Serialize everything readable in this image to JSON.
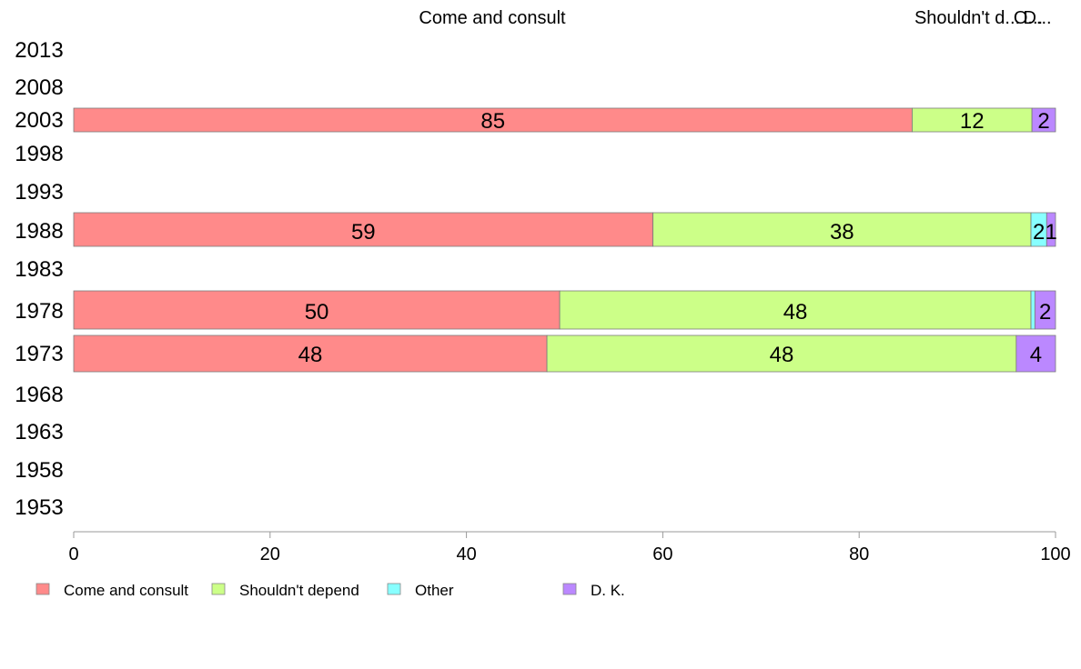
{
  "chart_data": {
    "type": "bar",
    "orientation": "horizontal",
    "stacked": true,
    "top_labels": [
      "Come and consult",
      "Shouldn't d...",
      "O...",
      "D..."
    ],
    "categories": [
      "2013",
      "2008",
      "2003",
      "1998",
      "1993",
      "1988",
      "1983",
      "1978",
      "1973",
      "1968",
      "1963",
      "1958",
      "1953"
    ],
    "series": [
      {
        "name": "Come and consult",
        "color": "#FF8A8A",
        "values": [
          null,
          null,
          85.4,
          null,
          null,
          59,
          null,
          49.5,
          48.2,
          null,
          null,
          null,
          null
        ]
      },
      {
        "name": "Shouldn't depend",
        "color": "#CCFF88",
        "values": [
          null,
          null,
          12.2,
          null,
          null,
          38.5,
          null,
          48,
          47.8,
          null,
          null,
          null,
          null
        ]
      },
      {
        "name": "Other",
        "color": "#88FFFF",
        "values": [
          null,
          null,
          0,
          null,
          null,
          1.6,
          null,
          0.4,
          0,
          null,
          null,
          null,
          null
        ]
      },
      {
        "name": "D. K.",
        "color": "#BB88FF",
        "values": [
          null,
          null,
          2.4,
          null,
          null,
          0.9,
          null,
          2.1,
          4,
          null,
          null,
          null,
          null
        ]
      }
    ],
    "data_labels": {
      "2003": [
        "85",
        "12",
        "",
        "2"
      ],
      "1988": [
        "59",
        "38",
        "2",
        "1"
      ],
      "1978": [
        "50",
        "48",
        "",
        "2"
      ],
      "1973": [
        "48",
        "48",
        "",
        "4"
      ]
    },
    "xticks": [
      "0",
      "20",
      "40",
      "60",
      "80",
      "100"
    ],
    "xlim": [
      0,
      100
    ],
    "grid": false,
    "legend_position": "bottom-left"
  }
}
